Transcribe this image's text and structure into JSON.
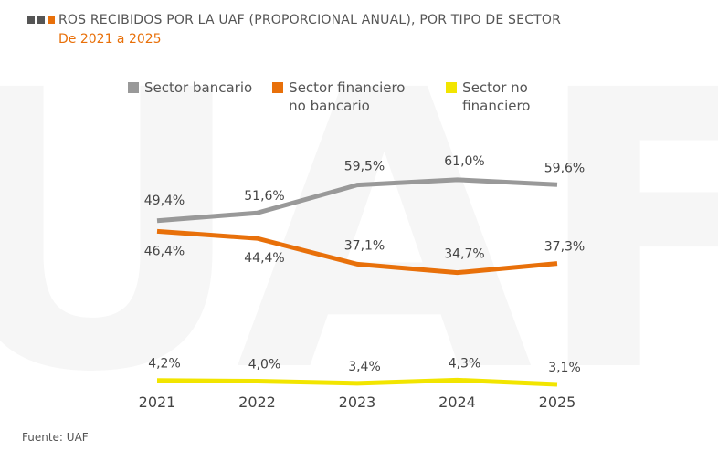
{
  "chart_data": {
    "type": "line",
    "title": "ROS RECIBIDOS POR LA UAF (PROPORCIONAL ANUAL), POR TIPO DE SECTOR",
    "subtitle": "De 2021 a 2025",
    "source": "Fuente: UAF",
    "categories": [
      "2021",
      "2022",
      "2023",
      "2024",
      "2025"
    ],
    "series": [
      {
        "name": "Sector bancario",
        "color": "#999999",
        "values": [
          49.4,
          51.6,
          59.5,
          61.0,
          59.6
        ],
        "value_labels": [
          "49,4%",
          "51,6%",
          "59,5%",
          "61,0%",
          "59,6%"
        ]
      },
      {
        "name": "Sector financiero no bancario",
        "color": "#e8700a",
        "values": [
          46.4,
          44.4,
          37.1,
          34.7,
          37.3
        ],
        "value_labels": [
          "46,4%",
          "44,4%",
          "37,1%",
          "34,7%",
          "37,3%"
        ]
      },
      {
        "name": "Sector no financiero",
        "color": "#f2e500",
        "values": [
          4.2,
          4.0,
          3.4,
          4.3,
          3.1
        ],
        "value_labels": [
          "4,2%",
          "4,0%",
          "3,4%",
          "4,3%",
          "3,1%"
        ]
      }
    ],
    "ylim": [
      0,
      70
    ]
  }
}
